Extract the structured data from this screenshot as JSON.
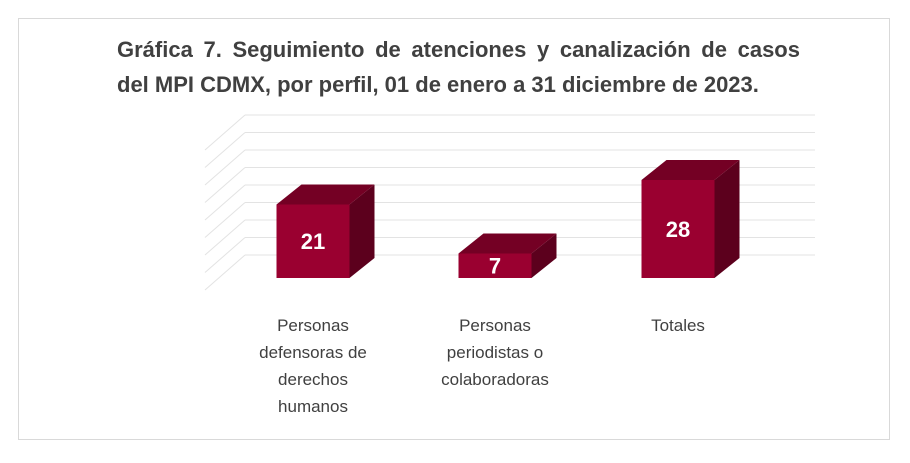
{
  "chart_data": {
    "type": "bar3d",
    "title": "Gráfica 7. Seguimiento de atenciones y canalización de casos del MPI CDMX, por perfil, 01 de enero a  31 diciembre de 2023.",
    "categories": [
      "Personas defensoras de derechos humanos",
      "Personas periodistas o colaboradoras",
      "Totales"
    ],
    "values": [
      21,
      7,
      28
    ],
    "color": "#9a0030",
    "ylim": [
      0,
      40
    ],
    "yticks": [
      0,
      5,
      10,
      15,
      20,
      25,
      30,
      35,
      40
    ],
    "grid": true
  }
}
